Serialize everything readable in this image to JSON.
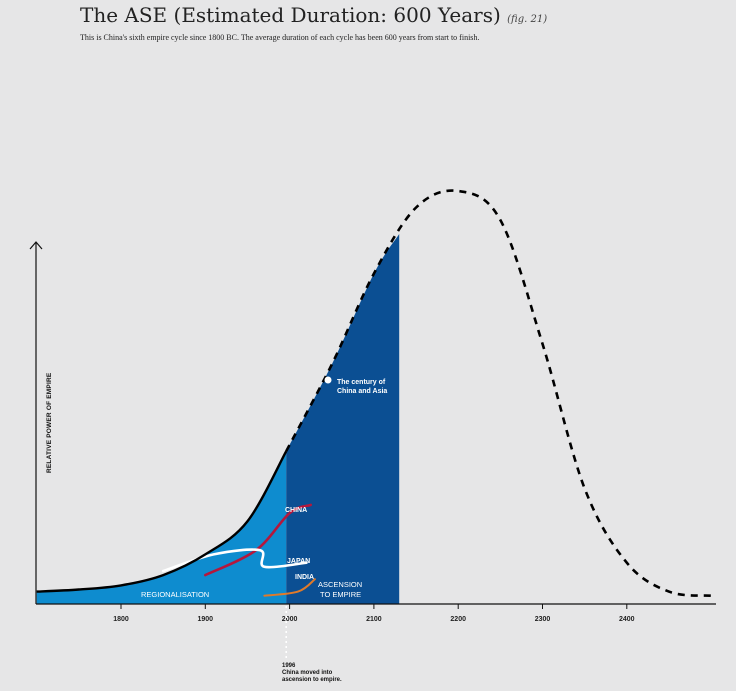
{
  "header": {
    "title": "The ASE (Estimated Duration: 600 Years)",
    "fig_ref": "(fig. 21)",
    "subtitle": "This is China's sixth empire cycle since 1800 BC. The average duration of each cycle has been 600 years from start to finish."
  },
  "colors": {
    "background": "#e6e6e7",
    "regionalisation_blue": "#0e8ccf",
    "empire_blue": "#0b4f93",
    "china_line": "#b5173c",
    "india_line": "#e07a2a",
    "japan_line": "#ffffff",
    "curve": "#000000"
  },
  "chart_data": {
    "type": "line",
    "title": "The ASE (Estimated Duration: 600 Years)",
    "ylabel": "RELATIVE POWER OF EMPIRE",
    "xlabel": "",
    "x_ticks": [
      1800,
      1900,
      2000,
      2100,
      2200,
      2300,
      2400
    ],
    "xlim": [
      1700,
      2500
    ],
    "ylim": [
      0,
      1
    ],
    "grid": false,
    "series": [
      {
        "name": "",
        "style": "solid",
        "points": [
          [
            1700,
            0.03
          ],
          [
            1750,
            0.035
          ],
          [
            1800,
            0.045
          ],
          [
            1850,
            0.07
          ],
          [
            1900,
            0.12
          ],
          [
            1950,
            0.2
          ],
          [
            1996,
            0.37
          ]
        ]
      },
      {
        "name": "",
        "style": "dashed",
        "points": [
          [
            1996,
            0.37
          ],
          [
            2050,
            0.58
          ],
          [
            2100,
            0.8
          ],
          [
            2150,
            0.96
          ],
          [
            2200,
            1.0
          ],
          [
            2250,
            0.93
          ],
          [
            2300,
            0.63
          ],
          [
            2350,
            0.28
          ],
          [
            2400,
            0.1
          ],
          [
            2450,
            0.03
          ],
          [
            2500,
            0.02
          ]
        ]
      },
      {
        "name": "CHINA",
        "style": "solid",
        "points": [
          [
            1900,
            0.07
          ],
          [
            1960,
            0.13
          ],
          [
            2000,
            0.22
          ],
          [
            2025,
            0.24
          ]
        ]
      },
      {
        "name": "JAPAN",
        "style": "solid",
        "points": [
          [
            1850,
            0.08
          ],
          [
            1910,
            0.12
          ],
          [
            1965,
            0.13
          ],
          [
            1970,
            0.09
          ],
          [
            2020,
            0.1
          ]
        ]
      },
      {
        "name": "INDIA",
        "style": "solid",
        "points": [
          [
            1970,
            0.02
          ],
          [
            2010,
            0.03
          ],
          [
            2030,
            0.06
          ]
        ]
      }
    ],
    "regions": [
      {
        "name": "REGIONALISATION",
        "x": [
          1700,
          1996
        ]
      },
      {
        "name": "ASCENSION TO EMPIRE",
        "x": [
          1996,
          2130
        ]
      }
    ],
    "annotations": [
      {
        "text": "The century of China and Asia",
        "x": 2047,
        "y": 0.6
      },
      {
        "text": "1996 China moved into ascension to empire.",
        "x": 1996,
        "y": 0
      }
    ]
  },
  "labels": {
    "ylabel": "RELATIVE POWER OF EMPIRE",
    "century": [
      "The century of",
      "China and Asia"
    ],
    "china": "CHINA",
    "japan": "JAPAN",
    "india": "INDIA",
    "regionalisation": "REGIONALISATION",
    "ascension": [
      "ASCENSION",
      "TO EMPIRE"
    ],
    "note": [
      "1996",
      "China moved into",
      "ascension to empire."
    ]
  }
}
